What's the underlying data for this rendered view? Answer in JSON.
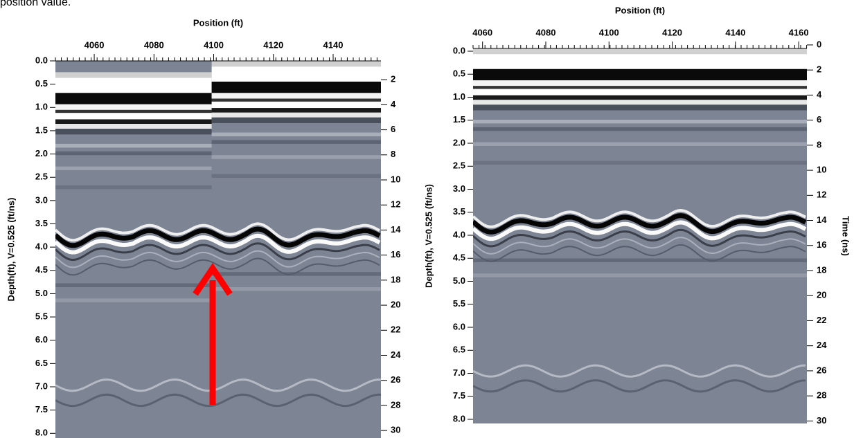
{
  "caption_fragment": "position value.",
  "panels": [
    {
      "position_label": "Position (ft)",
      "depth_label": "Depth(ft), V=0.525 (ft/ns)",
      "xlim": [
        4047,
        4156
      ],
      "xticks": [
        4060,
        4080,
        4100,
        4120,
        4140
      ],
      "depth_lim": [
        0,
        8.1
      ],
      "depth_ticks": [
        {
          "value": 0,
          "label": "0.0"
        },
        0.5,
        {
          "value": 1,
          "label": "1.0"
        },
        1.5,
        {
          "value": 2,
          "label": "2.0"
        },
        2.5,
        {
          "value": 3,
          "label": "3.0"
        },
        3.5,
        {
          "value": 4,
          "label": "4.0"
        },
        4.5,
        {
          "value": 5,
          "label": "5.0"
        },
        5.5,
        {
          "value": 6,
          "label": "6.0"
        },
        6.5,
        {
          "value": 7,
          "label": "7.0"
        },
        7.5,
        {
          "value": 8,
          "label": "8.0"
        }
      ],
      "time_lim": [
        0.5,
        30.6
      ],
      "time_ticks": [
        2,
        4,
        6,
        8,
        10,
        12,
        14,
        16,
        18,
        20,
        22,
        24,
        26,
        28,
        30
      ]
    },
    {
      "position_label": "Position (ft)",
      "depth_label": "Depth(ft), V=0.525 (ft/ns)",
      "time_label": "Time (ns)",
      "xlim": [
        4057,
        4162.6
      ],
      "xticks": [
        4060,
        4080,
        4100,
        4120,
        4140,
        4160
      ],
      "depth_lim": [
        -0.06,
        8.09
      ],
      "depth_ticks": [
        {
          "value": 0,
          "label": "0.0"
        },
        0.5,
        {
          "value": 1,
          "label": "1.0"
        },
        1.5,
        {
          "value": 2,
          "label": "2.0"
        },
        2.5,
        {
          "value": 3,
          "label": "3.0"
        },
        3.5,
        {
          "value": 4,
          "label": "4.0"
        },
        4.5,
        {
          "value": 5,
          "label": "5.0"
        },
        5.5,
        {
          "value": 6,
          "label": "6.0"
        },
        6.5,
        {
          "value": 7,
          "label": "7.0"
        },
        7.5,
        {
          "value": 8,
          "label": "8.0"
        }
      ],
      "time_lim": [
        0.28,
        30.2
      ],
      "time_ticks": [
        0,
        2,
        4,
        6,
        8,
        10,
        12,
        14,
        16,
        18,
        20,
        22,
        24,
        26,
        28,
        30
      ]
    }
  ]
}
